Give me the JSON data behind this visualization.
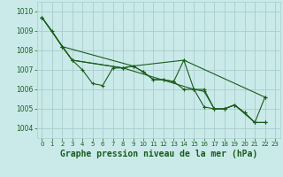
{
  "background_color": "#caeaea",
  "grid_color": "#aacccc",
  "line_color": "#1a5c1a",
  "marker_color": "#1a5c1a",
  "xlabel": "Graphe pression niveau de la mer (hPa)",
  "xlabel_fontsize": 7,
  "ylim": [
    1003.5,
    1010.5
  ],
  "xlim": [
    -0.5,
    23.5
  ],
  "yticks": [
    1004,
    1005,
    1006,
    1007,
    1008,
    1009,
    1010
  ],
  "xticks": [
    0,
    1,
    2,
    3,
    4,
    5,
    6,
    7,
    8,
    9,
    10,
    11,
    12,
    13,
    14,
    15,
    16,
    17,
    18,
    19,
    20,
    21,
    22,
    23
  ],
  "line1_x": [
    0,
    1,
    2,
    3,
    4,
    5,
    6,
    7,
    8,
    9,
    10,
    11,
    12,
    13,
    14,
    15,
    16,
    17,
    18,
    19,
    20,
    21,
    22
  ],
  "line1_y": [
    1009.7,
    1009.0,
    1008.2,
    1007.5,
    1007.0,
    1006.3,
    1006.2,
    1007.1,
    1007.1,
    1007.2,
    1006.9,
    1006.5,
    1006.5,
    1006.4,
    1007.5,
    1006.0,
    1005.9,
    1005.0,
    1005.0,
    1005.2,
    1004.8,
    1004.3,
    1004.3
  ],
  "line2_x": [
    0,
    2,
    9,
    14,
    22
  ],
  "line2_y": [
    1009.7,
    1008.2,
    1007.2,
    1007.5,
    1005.6
  ],
  "line3_x": [
    2,
    3,
    8,
    9,
    10,
    11,
    12,
    13,
    14,
    15,
    16,
    17,
    18,
    19,
    21,
    22
  ],
  "line3_y": [
    1008.2,
    1007.5,
    1007.1,
    1007.2,
    1006.9,
    1006.5,
    1006.5,
    1006.4,
    1006.0,
    1006.0,
    1006.0,
    1005.0,
    1005.0,
    1005.2,
    1004.3,
    1005.6
  ],
  "line4_x": [
    0,
    3,
    8,
    15,
    16,
    17,
    18,
    19,
    20,
    21,
    22
  ],
  "line4_y": [
    1009.7,
    1007.5,
    1007.1,
    1006.0,
    1005.1,
    1005.0,
    1005.0,
    1005.2,
    1004.8,
    1004.3,
    1004.3
  ]
}
